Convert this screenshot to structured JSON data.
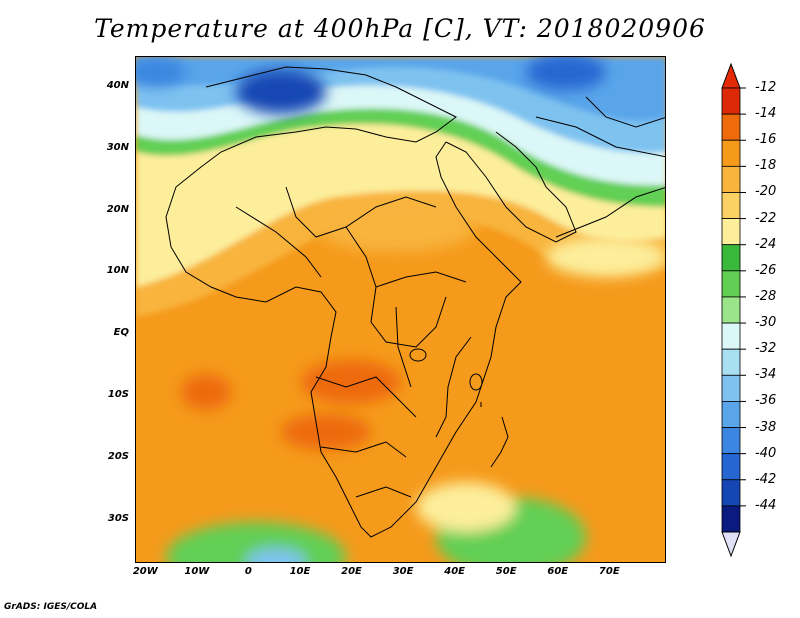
{
  "title": "Temperature at 400hPa [C], VT: 2018020906",
  "credit": "GrADS: IGES/COLA",
  "map": {
    "lat_range": [
      -37,
      45
    ],
    "lon_range": [
      -22,
      81
    ],
    "lat_labels": [
      {
        "lat": 40,
        "text": "40N"
      },
      {
        "lat": 30,
        "text": "30N"
      },
      {
        "lat": 20,
        "text": "20N"
      },
      {
        "lat": 10,
        "text": "10N"
      },
      {
        "lat": 0,
        "text": "EQ"
      },
      {
        "lat": -10,
        "text": "10S"
      },
      {
        "lat": -20,
        "text": "20S"
      },
      {
        "lat": -30,
        "text": "30S"
      }
    ],
    "lon_labels": [
      {
        "lon": -20,
        "text": "20W"
      },
      {
        "lon": -10,
        "text": "10W"
      },
      {
        "lon": 0,
        "text": "0"
      },
      {
        "lon": 10,
        "text": "10E"
      },
      {
        "lon": 20,
        "text": "20E"
      },
      {
        "lon": 30,
        "text": "30E"
      },
      {
        "lon": 40,
        "text": "40E"
      },
      {
        "lon": 50,
        "text": "50E"
      },
      {
        "lon": 60,
        "text": "60E"
      },
      {
        "lon": 70,
        "text": "70E"
      }
    ]
  },
  "colorbar": {
    "levels": [
      "-12",
      "-14",
      "-16",
      "-18",
      "-20",
      "-22",
      "-24",
      "-26",
      "-28",
      "-30",
      "-32",
      "-34",
      "-36",
      "-38",
      "-40",
      "-42",
      "-44"
    ],
    "colors": [
      "#dc2a08",
      "#ee6a0a",
      "#f59a1b",
      "#f8b43c",
      "#fbd064",
      "#fdee9b",
      "#3ab83a",
      "#62cf54",
      "#9be48a",
      "#dcf7f7",
      "#a8e0f2",
      "#7ec2f0",
      "#5aa5ea",
      "#3b86e0",
      "#2566d2",
      "#1547b4",
      "#0b1a7e"
    ],
    "top_arrow_color": "#e42a08",
    "bottom_arrow_color": "#e0e0f8"
  }
}
